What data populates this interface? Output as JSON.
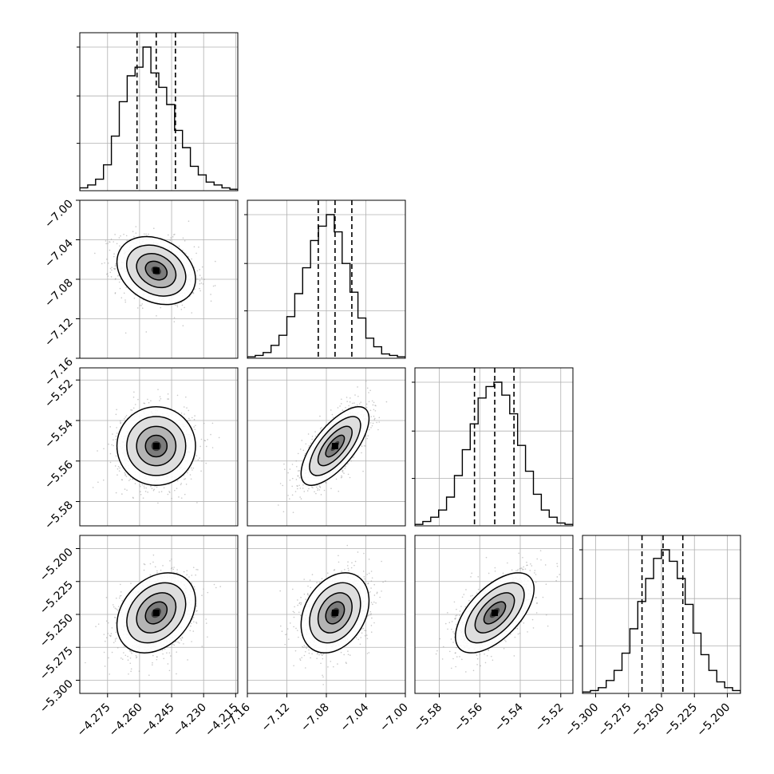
{
  "chart_data": [
    {
      "type": "corner-plot",
      "parameters": [
        "",
        "",
        "",
        ""
      ],
      "diagonal_type": "histogram",
      "offdiagonal_type": "2d-density-contour-scatter",
      "grid": true,
      "quantile_lines": "dashed",
      "colors": {
        "line": "#000000",
        "grid": "#b0b0b0",
        "scatter": "#9a9a9a"
      },
      "param_ranges": [
        [
          -4.288,
          -4.214
        ],
        [
          -7.16,
          -7.0
        ],
        [
          -5.592,
          -5.514
        ],
        [
          -5.31,
          -5.19
        ]
      ],
      "tick_values": [
        [
          -4.275,
          -4.26,
          -4.245,
          -4.23,
          -4.215
        ],
        [
          -7.16,
          -7.12,
          -7.08,
          -7.04,
          -7.0
        ],
        [
          -5.58,
          -5.56,
          -5.54,
          -5.52
        ],
        [
          -5.3,
          -5.275,
          -5.25,
          -5.225,
          -5.2
        ]
      ],
      "tick_labels": [
        [
          "−4.275",
          "−4.260",
          "−4.245",
          "−4.230",
          "−4.215"
        ],
        [
          "−7.16",
          "−7.12",
          "−7.08",
          "−7.04",
          "−7.00"
        ],
        [
          "−5.58",
          "−5.56",
          "−5.54",
          "−5.52"
        ],
        [
          "−5.300",
          "−5.275",
          "−5.250",
          "−5.225",
          "−5.200"
        ]
      ],
      "quantiles": [
        [
          -4.2612,
          -4.2522,
          -4.2432
        ],
        [
          -7.0882,
          -7.0712,
          -7.0542
        ],
        [
          -5.5626,
          -5.5526,
          -5.5431
        ],
        [
          -5.2648,
          -5.2488,
          -5.2338
        ]
      ],
      "centers": [
        -4.2522,
        -7.0712,
        -5.5526,
        -5.2488
      ],
      "sigmas": [
        0.0092,
        0.0172,
        0.0097,
        0.0152
      ],
      "correlations": [
        {
          "pair": [
            1,
            0
          ],
          "rho": -0.25
        },
        {
          "pair": [
            2,
            0
          ],
          "rho": 0.0
        },
        {
          "pair": [
            2,
            1
          ],
          "rho": 0.7
        },
        {
          "pair": [
            3,
            0
          ],
          "rho": 0.3
        },
        {
          "pair": [
            3,
            1
          ],
          "rho": 0.3
        },
        {
          "pair": [
            3,
            2
          ],
          "rho": 0.6
        }
      ],
      "histograms": [
        {
          "bins": 20,
          "counts": [
            2,
            4,
            8,
            18,
            38,
            62,
            80,
            86,
            100,
            82,
            72,
            60,
            42,
            30,
            17,
            11,
            6,
            4,
            2,
            1
          ]
        },
        {
          "bins": 20,
          "counts": [
            1,
            2,
            4,
            9,
            16,
            29,
            45,
            63,
            82,
            92,
            100,
            88,
            66,
            46,
            28,
            14,
            8,
            3,
            2,
            1
          ]
        },
        {
          "bins": 20,
          "counts": [
            1,
            3,
            6,
            11,
            20,
            35,
            53,
            71,
            89,
            97,
            100,
            91,
            78,
            56,
            38,
            22,
            11,
            6,
            2,
            1
          ]
        },
        {
          "bins": 20,
          "counts": [
            1,
            2,
            4,
            9,
            16,
            28,
            45,
            64,
            80,
            94,
            100,
            92,
            80,
            62,
            42,
            27,
            16,
            8,
            4,
            2
          ]
        }
      ]
    }
  ]
}
